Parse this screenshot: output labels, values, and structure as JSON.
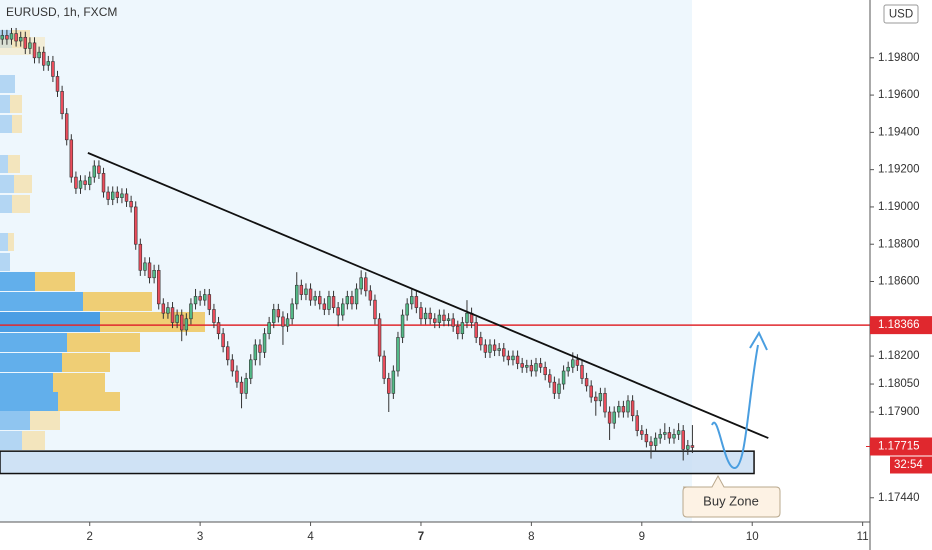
{
  "chart_data": {
    "type": "candlestick",
    "title": "EURUSD, 1h, FXCM",
    "currency": "USD",
    "up_color": "#53b987",
    "down_color": "#eb4d5c",
    "xlim": [
      -0.5,
      188.6
    ],
    "xticks": [
      {
        "value": 19,
        "label": "2"
      },
      {
        "value": 43,
        "label": "3"
      },
      {
        "value": 67,
        "label": "4"
      },
      {
        "value": 91,
        "label": "7"
      },
      {
        "value": 115,
        "label": "8"
      },
      {
        "value": 139,
        "label": "9"
      },
      {
        "value": 163,
        "label": "10"
      },
      {
        "value": 187,
        "label": "11"
      }
    ],
    "ylim": [
      1.1731,
      1.2011
    ],
    "yticks": [
      {
        "value": 1.198,
        "label": "1.19800"
      },
      {
        "value": 1.196,
        "label": "1.19600"
      },
      {
        "value": 1.194,
        "label": "1.19400"
      },
      {
        "value": 1.192,
        "label": "1.19200"
      },
      {
        "value": 1.19,
        "label": "1.19000"
      },
      {
        "value": 1.188,
        "label": "1.18800"
      },
      {
        "value": 1.186,
        "label": "1.18600"
      },
      {
        "value": 1.182,
        "label": "1.18200"
      },
      {
        "value": 1.1805,
        "label": "1.18050"
      },
      {
        "value": 1.179,
        "label": "1.17900"
      },
      {
        "value": 1.1744,
        "label": "1.17440"
      }
    ],
    "candles": [
      [
        1.199,
        1.1995,
        1.1987,
        1.1992
      ],
      [
        1.1992,
        1.1995,
        1.1987,
        1.199
      ],
      [
        1.199,
        1.1996,
        1.1987,
        1.1993
      ],
      [
        1.1993,
        1.1996,
        1.1986,
        1.1989
      ],
      [
        1.1989,
        1.1994,
        1.1986,
        1.1991
      ],
      [
        1.1991,
        1.1994,
        1.1982,
        1.1985
      ],
      [
        1.1985,
        1.1991,
        1.1982,
        1.1988
      ],
      [
        1.1988,
        1.1991,
        1.1977,
        1.198
      ],
      [
        1.198,
        1.1986,
        1.1977,
        1.1983
      ],
      [
        1.1983,
        1.1986,
        1.1973,
        1.1976
      ],
      [
        1.1976,
        1.1981,
        1.1973,
        1.1978
      ],
      [
        1.1978,
        1.1981,
        1.1967,
        1.197
      ],
      [
        1.197,
        1.1973,
        1.1959,
        1.1962
      ],
      [
        1.1962,
        1.1965,
        1.1947,
        1.195
      ],
      [
        1.195,
        1.1953,
        1.1933,
        1.1936
      ],
      [
        1.1936,
        1.1939,
        1.1913,
        1.1916
      ],
      [
        1.1916,
        1.1919,
        1.1907,
        1.191
      ],
      [
        1.191,
        1.1917,
        1.1907,
        1.1914
      ],
      [
        1.1914,
        1.1917,
        1.1909,
        1.1912
      ],
      [
        1.1912,
        1.1919,
        1.1909,
        1.1916
      ],
      [
        1.1916,
        1.1925,
        1.1913,
        1.1922
      ],
      [
        1.1922,
        1.1925,
        1.1915,
        1.1918
      ],
      [
        1.1918,
        1.1921,
        1.1905,
        1.1908
      ],
      [
        1.1908,
        1.1911,
        1.1901,
        1.1904
      ],
      [
        1.1904,
        1.1911,
        1.1901,
        1.1908
      ],
      [
        1.1908,
        1.1911,
        1.1902,
        1.1905
      ],
      [
        1.1905,
        1.191,
        1.1902,
        1.1907
      ],
      [
        1.1907,
        1.191,
        1.19,
        1.1903
      ],
      [
        1.1903,
        1.1906,
        1.1897,
        1.19
      ],
      [
        1.19,
        1.1903,
        1.1877,
        1.188
      ],
      [
        1.188,
        1.1883,
        1.1863,
        1.1866
      ],
      [
        1.1866,
        1.1873,
        1.1863,
        1.187
      ],
      [
        1.187,
        1.1873,
        1.1859,
        1.1862
      ],
      [
        1.1862,
        1.1869,
        1.1859,
        1.1866
      ],
      [
        1.1866,
        1.1869,
        1.1845,
        1.1848
      ],
      [
        1.1848,
        1.1851,
        1.184,
        1.1843
      ],
      [
        1.1843,
        1.1849,
        1.184,
        1.1846
      ],
      [
        1.1846,
        1.1849,
        1.1835,
        1.1838
      ],
      [
        1.1838,
        1.1845,
        1.1835,
        1.1842
      ],
      [
        1.1842,
        1.1845,
        1.1828,
        1.1834
      ],
      [
        1.1834,
        1.1843,
        1.1831,
        1.184
      ],
      [
        1.184,
        1.1851,
        1.1837,
        1.1848
      ],
      [
        1.1848,
        1.1856,
        1.1845,
        1.1852
      ],
      [
        1.1852,
        1.1855,
        1.1847,
        1.185
      ],
      [
        1.185,
        1.1856,
        1.1847,
        1.1853
      ],
      [
        1.1853,
        1.1856,
        1.1842,
        1.1845
      ],
      [
        1.1845,
        1.1848,
        1.1835,
        1.1838
      ],
      [
        1.1838,
        1.1841,
        1.1829,
        1.1832
      ],
      [
        1.1832,
        1.1835,
        1.1822,
        1.1825
      ],
      [
        1.1825,
        1.1828,
        1.1815,
        1.1818
      ],
      [
        1.1818,
        1.1821,
        1.1809,
        1.1812
      ],
      [
        1.1812,
        1.1815,
        1.1803,
        1.1806
      ],
      [
        1.1806,
        1.1809,
        1.1792,
        1.18
      ],
      [
        1.18,
        1.1811,
        1.1797,
        1.1808
      ],
      [
        1.1808,
        1.1821,
        1.1805,
        1.1818
      ],
      [
        1.1818,
        1.1829,
        1.1815,
        1.1826
      ],
      [
        1.1826,
        1.1829,
        1.1815,
        1.1822
      ],
      [
        1.1822,
        1.1835,
        1.1819,
        1.1832
      ],
      [
        1.1832,
        1.1841,
        1.1829,
        1.1838
      ],
      [
        1.1838,
        1.1848,
        1.1835,
        1.1845
      ],
      [
        1.1845,
        1.1848,
        1.1838,
        1.1841
      ],
      [
        1.1841,
        1.1844,
        1.1826,
        1.1836
      ],
      [
        1.1836,
        1.1843,
        1.1833,
        1.184
      ],
      [
        1.184,
        1.1851,
        1.1837,
        1.1848
      ],
      [
        1.1848,
        1.1865,
        1.1845,
        1.1858
      ],
      [
        1.1858,
        1.1861,
        1.185,
        1.1853
      ],
      [
        1.1853,
        1.1859,
        1.185,
        1.1856
      ],
      [
        1.1856,
        1.1859,
        1.1847,
        1.185
      ],
      [
        1.185,
        1.1855,
        1.1847,
        1.1852
      ],
      [
        1.1852,
        1.1855,
        1.1845,
        1.1848
      ],
      [
        1.1848,
        1.1851,
        1.1842,
        1.1845
      ],
      [
        1.1845,
        1.1855,
        1.1842,
        1.1852
      ],
      [
        1.1852,
        1.1855,
        1.1843,
        1.1846
      ],
      [
        1.1846,
        1.1849,
        1.1836,
        1.1842
      ],
      [
        1.1842,
        1.1851,
        1.1839,
        1.1848
      ],
      [
        1.1848,
        1.1855,
        1.1845,
        1.1852
      ],
      [
        1.1852,
        1.1855,
        1.1845,
        1.1848
      ],
      [
        1.1848,
        1.1859,
        1.1845,
        1.1856
      ],
      [
        1.1856,
        1.1866,
        1.1853,
        1.1862
      ],
      [
        1.1862,
        1.1865,
        1.1852,
        1.1855
      ],
      [
        1.1855,
        1.1858,
        1.1847,
        1.185
      ],
      [
        1.185,
        1.1853,
        1.1837,
        1.184
      ],
      [
        1.184,
        1.1843,
        1.1817,
        1.182
      ],
      [
        1.182,
        1.1823,
        1.1805,
        1.1808
      ],
      [
        1.1808,
        1.1811,
        1.179,
        1.18
      ],
      [
        1.18,
        1.1815,
        1.1797,
        1.1812
      ],
      [
        1.1812,
        1.1833,
        1.1809,
        1.183
      ],
      [
        1.183,
        1.1845,
        1.1827,
        1.1842
      ],
      [
        1.1842,
        1.1851,
        1.1839,
        1.1848
      ],
      [
        1.1848,
        1.1856,
        1.1845,
        1.1852
      ],
      [
        1.1852,
        1.1855,
        1.1843,
        1.1846
      ],
      [
        1.1846,
        1.1849,
        1.1837,
        1.184
      ],
      [
        1.184,
        1.1846,
        1.1837,
        1.1843
      ],
      [
        1.1843,
        1.1846,
        1.1837,
        1.184
      ],
      [
        1.184,
        1.1843,
        1.1835,
        1.1838
      ],
      [
        1.1838,
        1.1845,
        1.1835,
        1.1842
      ],
      [
        1.1842,
        1.1845,
        1.1836,
        1.1839
      ],
      [
        1.1839,
        1.1843,
        1.1836,
        1.184
      ],
      [
        1.184,
        1.1843,
        1.1833,
        1.1836
      ],
      [
        1.1836,
        1.1839,
        1.1829,
        1.1832
      ],
      [
        1.1832,
        1.1841,
        1.1829,
        1.1838
      ],
      [
        1.1838,
        1.185,
        1.1835,
        1.1843
      ],
      [
        1.1843,
        1.1846,
        1.1835,
        1.1838
      ],
      [
        1.1838,
        1.1841,
        1.1827,
        1.183
      ],
      [
        1.183,
        1.1833,
        1.1823,
        1.1826
      ],
      [
        1.1826,
        1.1829,
        1.1819,
        1.1822
      ],
      [
        1.1822,
        1.1829,
        1.1819,
        1.1826
      ],
      [
        1.1826,
        1.1829,
        1.182,
        1.1823
      ],
      [
        1.1823,
        1.1827,
        1.182,
        1.1824
      ],
      [
        1.1824,
        1.1827,
        1.1817,
        1.182
      ],
      [
        1.182,
        1.1823,
        1.1815,
        1.1818
      ],
      [
        1.1818,
        1.1823,
        1.1815,
        1.182
      ],
      [
        1.182,
        1.1823,
        1.1813,
        1.1816
      ],
      [
        1.1816,
        1.1819,
        1.1811,
        1.1814
      ],
      [
        1.1814,
        1.1818,
        1.1811,
        1.1815
      ],
      [
        1.1815,
        1.1818,
        1.1809,
        1.1812
      ],
      [
        1.1812,
        1.1819,
        1.1809,
        1.1816
      ],
      [
        1.1816,
        1.1819,
        1.1811,
        1.1814
      ],
      [
        1.1814,
        1.1817,
        1.1807,
        1.181
      ],
      [
        1.181,
        1.1813,
        1.1803,
        1.1806
      ],
      [
        1.1806,
        1.1809,
        1.1797,
        1.18
      ],
      [
        1.18,
        1.1808,
        1.1797,
        1.1805
      ],
      [
        1.1805,
        1.1815,
        1.1802,
        1.1812
      ],
      [
        1.1812,
        1.1817,
        1.1809,
        1.1814
      ],
      [
        1.1814,
        1.1822,
        1.1811,
        1.1818
      ],
      [
        1.1818,
        1.1821,
        1.1812,
        1.1815
      ],
      [
        1.1815,
        1.1818,
        1.1805,
        1.1808
      ],
      [
        1.1808,
        1.1811,
        1.1801,
        1.1804
      ],
      [
        1.1804,
        1.1807,
        1.1795,
        1.1798
      ],
      [
        1.1798,
        1.1801,
        1.1788,
        1.1796
      ],
      [
        1.1796,
        1.1803,
        1.1793,
        1.18
      ],
      [
        1.18,
        1.1803,
        1.1787,
        1.179
      ],
      [
        1.179,
        1.1793,
        1.1775,
        1.1784
      ],
      [
        1.1784,
        1.1793,
        1.1781,
        1.179
      ],
      [
        1.179,
        1.1796,
        1.1787,
        1.1793
      ],
      [
        1.1793,
        1.1796,
        1.1787,
        1.179
      ],
      [
        1.179,
        1.1799,
        1.1787,
        1.1796
      ],
      [
        1.1796,
        1.1799,
        1.1785,
        1.1788
      ],
      [
        1.1788,
        1.1791,
        1.1777,
        1.178
      ],
      [
        1.178,
        1.1783,
        1.1775,
        1.1778
      ],
      [
        1.1778,
        1.1781,
        1.1771,
        1.1774
      ],
      [
        1.1774,
        1.1777,
        1.1765,
        1.1772
      ],
      [
        1.1772,
        1.1779,
        1.1769,
        1.1776
      ],
      [
        1.1776,
        1.1781,
        1.1773,
        1.1778
      ],
      [
        1.1778,
        1.1784,
        1.1775,
        1.1779
      ],
      [
        1.1779,
        1.1782,
        1.1773,
        1.1776
      ],
      [
        1.1776,
        1.1781,
        1.1773,
        1.1778
      ],
      [
        1.1778,
        1.1784,
        1.1775,
        1.178
      ],
      [
        1.178,
        1.1783,
        1.1764,
        1.177
      ],
      [
        1.177,
        1.1775,
        1.1767,
        1.1772
      ],
      [
        1.1772,
        1.1783,
        1.1768,
        1.1771
      ]
    ],
    "level": {
      "value": 1.18366,
      "color": "#e0282e"
    },
    "last_price": {
      "value": 1.17715,
      "countdown": "32:54",
      "color": "#e0282e"
    },
    "trendline": {
      "x": [
        18.6,
        166.5
      ],
      "y": [
        1.1929,
        1.1776
      ]
    },
    "zone": {
      "x": [
        -0.5,
        163.4
      ],
      "y": [
        1.1769,
        1.1757
      ],
      "color": "#c7dcf3",
      "label": "Buy Zone"
    }
  }
}
